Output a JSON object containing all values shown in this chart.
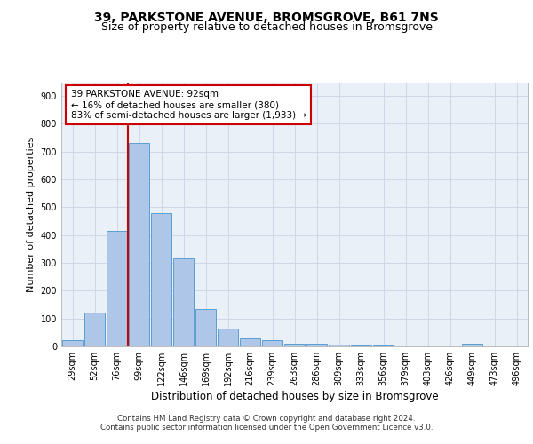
{
  "title": "39, PARKSTONE AVENUE, BROMSGROVE, B61 7NS",
  "subtitle": "Size of property relative to detached houses in Bromsgrove",
  "xlabel": "Distribution of detached houses by size in Bromsgrove",
  "ylabel": "Number of detached properties",
  "categories": [
    "29sqm",
    "52sqm",
    "76sqm",
    "99sqm",
    "122sqm",
    "146sqm",
    "169sqm",
    "192sqm",
    "216sqm",
    "239sqm",
    "263sqm",
    "286sqm",
    "309sqm",
    "333sqm",
    "356sqm",
    "379sqm",
    "403sqm",
    "426sqm",
    "449sqm",
    "473sqm",
    "496sqm"
  ],
  "values": [
    22,
    122,
    415,
    730,
    480,
    315,
    133,
    65,
    28,
    23,
    10,
    8,
    5,
    3,
    2,
    0,
    0,
    0,
    8,
    0,
    0
  ],
  "bar_color": "#aec6e8",
  "bar_edge_color": "#5a9fd4",
  "vline_color": "#cc0000",
  "annotation_text": "39 PARKSTONE AVENUE: 92sqm\n← 16% of detached houses are smaller (380)\n83% of semi-detached houses are larger (1,933) →",
  "annotation_box_color": "#ffffff",
  "annotation_box_edge_color": "#cc0000",
  "ylim": [
    0,
    950
  ],
  "yticks": [
    0,
    100,
    200,
    300,
    400,
    500,
    600,
    700,
    800,
    900
  ],
  "grid_color": "#d0d8e8",
  "background_color": "#eaf0f8",
  "footer_line1": "Contains HM Land Registry data © Crown copyright and database right 2024.",
  "footer_line2": "Contains public sector information licensed under the Open Government Licence v3.0.",
  "title_fontsize": 10,
  "subtitle_fontsize": 9,
  "xlabel_fontsize": 8.5,
  "ylabel_fontsize": 8,
  "tick_fontsize": 7
}
